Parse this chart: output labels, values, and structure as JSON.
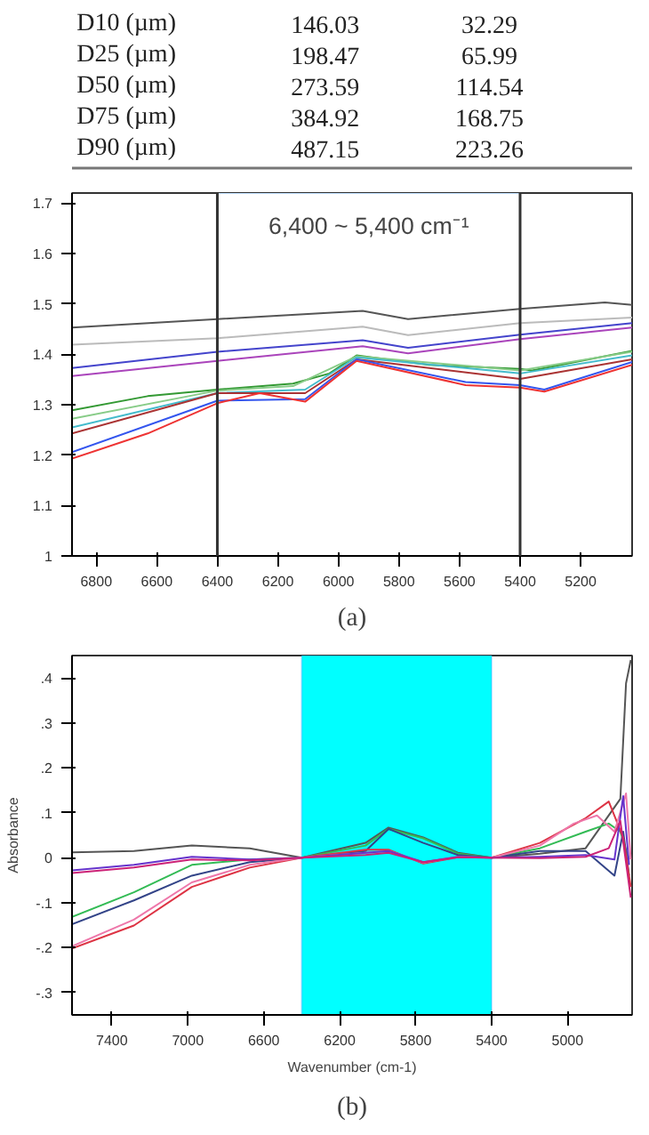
{
  "chart_data": [
    {
      "type": "other",
      "annotations": [
        "D10 (µm)",
        "146.03",
        "32.29",
        "D25 (µm)",
        "198.47",
        "65.99",
        "D50 (µm)",
        "273.59",
        "114.54",
        "D75 (µm)",
        "384.92",
        "168.75",
        "D90 (µm)",
        "487.15",
        "223.26"
      ]
    },
    {
      "type": "line",
      "xlim": [
        6880,
        5030
      ],
      "ylim": [
        1.0,
        1.72
      ],
      "xticks": [
        6800,
        6600,
        6400,
        6200,
        6000,
        5800,
        5600,
        5400,
        5200
      ],
      "yticks": [
        {
          "value": 1.0,
          "label": "1"
        },
        1.1,
        1.2,
        1.3,
        1.4,
        1.5,
        1.6,
        1.7
      ],
      "grid": false,
      "marker": "none",
      "line_style": "solid",
      "ref_lines": [
        {
          "axis": "x",
          "value": 6400,
          "label": null,
          "color": "#333333"
        },
        {
          "axis": "x",
          "value": 5400,
          "label": null,
          "color": "#333333"
        }
      ],
      "bands": [
        {
          "axis": "x",
          "from": 6400,
          "to": 5400,
          "label": "6,400 ~ 5,400 cm⁻¹",
          "color": "#ffffff"
        }
      ],
      "annotations": [
        "(a)"
      ],
      "series": [
        {
          "color": "#555555",
          "x": [
            6880,
            6400,
            5920,
            5770,
            5400,
            5120,
            5030
          ],
          "values": [
            1.453,
            1.47,
            1.486,
            1.47,
            1.49,
            1.503,
            1.498
          ]
        },
        {
          "color": "#bbbbbb",
          "x": [
            6880,
            6400,
            5920,
            5770,
            5400,
            5030
          ],
          "values": [
            1.419,
            1.432,
            1.455,
            1.438,
            1.462,
            1.473
          ]
        },
        {
          "color": "#4444cc",
          "x": [
            6880,
            6400,
            5920,
            5770,
            5400,
            5030
          ],
          "values": [
            1.373,
            1.405,
            1.428,
            1.413,
            1.439,
            1.462
          ]
        },
        {
          "color": "#aa44bb",
          "x": [
            6880,
            6400,
            5920,
            5770,
            5400,
            5030
          ],
          "values": [
            1.357,
            1.387,
            1.416,
            1.402,
            1.43,
            1.453
          ]
        },
        {
          "color": "#339933",
          "x": [
            6880,
            6630,
            6400,
            6150,
            6030,
            5940,
            5700,
            5400,
            5360,
            5030
          ],
          "values": [
            1.289,
            1.317,
            1.33,
            1.342,
            1.362,
            1.398,
            1.379,
            1.371,
            1.368,
            1.407
          ]
        },
        {
          "color": "#88cc88",
          "x": [
            6880,
            6400,
            6150,
            5940,
            5400,
            5030
          ],
          "values": [
            1.272,
            1.328,
            1.337,
            1.396,
            1.368,
            1.405
          ]
        },
        {
          "color": "#44bbcc",
          "x": [
            6880,
            6400,
            6110,
            5940,
            5400,
            5030
          ],
          "values": [
            1.255,
            1.323,
            1.33,
            1.394,
            1.362,
            1.398
          ]
        },
        {
          "color": "#aa3333",
          "x": [
            6880,
            6400,
            6110,
            5940,
            5400,
            5030
          ],
          "values": [
            1.243,
            1.323,
            1.323,
            1.39,
            1.351,
            1.39
          ]
        },
        {
          "color": "#3355ee",
          "x": [
            6880,
            6400,
            6110,
            5940,
            5580,
            5400,
            5320,
            5030
          ],
          "values": [
            1.206,
            1.308,
            1.311,
            1.39,
            1.345,
            1.339,
            1.33,
            1.385
          ]
        },
        {
          "color": "#ee3333",
          "x": [
            6880,
            6630,
            6400,
            6260,
            6110,
            5940,
            5580,
            5400,
            5320,
            5030
          ],
          "values": [
            1.193,
            1.243,
            1.303,
            1.323,
            1.306,
            1.387,
            1.339,
            1.334,
            1.326,
            1.379
          ]
        }
      ]
    },
    {
      "type": "line",
      "xlim": [
        7610,
        4660
      ],
      "ylim": [
        -0.35,
        0.45
      ],
      "xticks": [
        7400,
        7000,
        6600,
        6200,
        5800,
        5400,
        5000
      ],
      "yticks": [
        {
          "value": 0.4,
          "label": ".4"
        },
        {
          "value": 0.3,
          "label": ".3"
        },
        {
          "value": 0.2,
          "label": ".2"
        },
        {
          "value": 0.1,
          "label": ".1"
        },
        0,
        {
          "value": -0.1,
          "label": "-.1"
        },
        {
          "value": -0.2,
          "label": "-.2"
        },
        {
          "value": -0.3,
          "label": "-.3"
        }
      ],
      "xlabel": "Wavenumber (cm-1)",
      "ylabel": "Absorbance",
      "grid": false,
      "marker": "none",
      "line_style": "solid",
      "bands": [
        {
          "axis": "x",
          "from": 6400,
          "to": 5400,
          "label": null,
          "color": "#00ffff"
        }
      ],
      "annotations": [
        "(b)"
      ],
      "series": [
        {
          "color": "#555555",
          "x": [
            7610,
            7284,
            6979,
            6674,
            6400,
            6064,
            5943,
            5760,
            5577,
            5400,
            5146,
            4905,
            4722,
            4692,
            4667
          ],
          "values": [
            0.012,
            0.015,
            0.027,
            0.021,
            0,
            0.033,
            0.067,
            0.045,
            0.011,
            0,
            0.009,
            0.021,
            0.131,
            0.388,
            0.44
          ]
        },
        {
          "color": "#33bb55",
          "x": [
            7610,
            7284,
            6979,
            6674,
            6400,
            6064,
            5943,
            5760,
            5577,
            5400,
            5146,
            4905,
            4783,
            4722,
            4676
          ],
          "values": [
            -0.132,
            -0.077,
            -0.016,
            -0.004,
            0,
            0.027,
            0.064,
            0.043,
            0.009,
            0,
            0.021,
            0.058,
            0.076,
            0.058,
            -0.004
          ]
        },
        {
          "color": "#334488",
          "x": [
            7610,
            7284,
            6979,
            6674,
            6400,
            6064,
            5943,
            5760,
            5577,
            5400,
            5146,
            4905,
            4753,
            4707,
            4676
          ],
          "values": [
            -0.148,
            -0.095,
            -0.04,
            -0.01,
            0,
            0.015,
            0.064,
            0.033,
            0.006,
            0,
            0.015,
            0.015,
            -0.04,
            0.058,
            -0.04
          ]
        },
        {
          "color": "#dd3344",
          "x": [
            7610,
            7284,
            6979,
            6674,
            6400,
            6064,
            5943,
            5760,
            5577,
            5400,
            5146,
            4905,
            4783,
            4707,
            4667
          ],
          "values": [
            -0.202,
            -0.151,
            -0.065,
            -0.022,
            0,
            0.018,
            0.018,
            -0.013,
            0.001,
            0,
            0.033,
            0.088,
            0.125,
            0.045,
            -0.065
          ]
        },
        {
          "color": "#ee77aa",
          "x": [
            7610,
            7284,
            6979,
            6674,
            6400,
            6064,
            5943,
            5760,
            5577,
            5400,
            5146,
            4967,
            4845,
            4753,
            4692,
            4667
          ],
          "values": [
            -0.197,
            -0.138,
            -0.055,
            -0.016,
            0,
            0.011,
            0.015,
            -0.011,
            0.002,
            0,
            0.027,
            0.076,
            0.094,
            0.058,
            0.143,
            -0.004
          ]
        },
        {
          "color": "#6633cc",
          "x": [
            7610,
            7284,
            6979,
            6674,
            6400,
            6064,
            5943,
            5760,
            5577,
            5400,
            5146,
            4905,
            4753,
            4707,
            4676
          ],
          "values": [
            -0.028,
            -0.016,
            0.002,
            -0.004,
            0,
            0.011,
            0.015,
            -0.01,
            0.002,
            0,
            0.002,
            0.006,
            -0.004,
            0.137,
            -0.016
          ]
        },
        {
          "color": "#cc2277",
          "x": [
            7610,
            7284,
            6979,
            6674,
            6400,
            6064,
            5943,
            5760,
            5577,
            5400,
            5146,
            4905,
            4783,
            4722,
            4667
          ],
          "values": [
            -0.034,
            -0.022,
            -0.004,
            -0.006,
            0,
            0.006,
            0.011,
            -0.01,
            0.001,
            0,
            -0.001,
            0.002,
            0.021,
            0.082,
            -0.089
          ]
        }
      ]
    }
  ]
}
